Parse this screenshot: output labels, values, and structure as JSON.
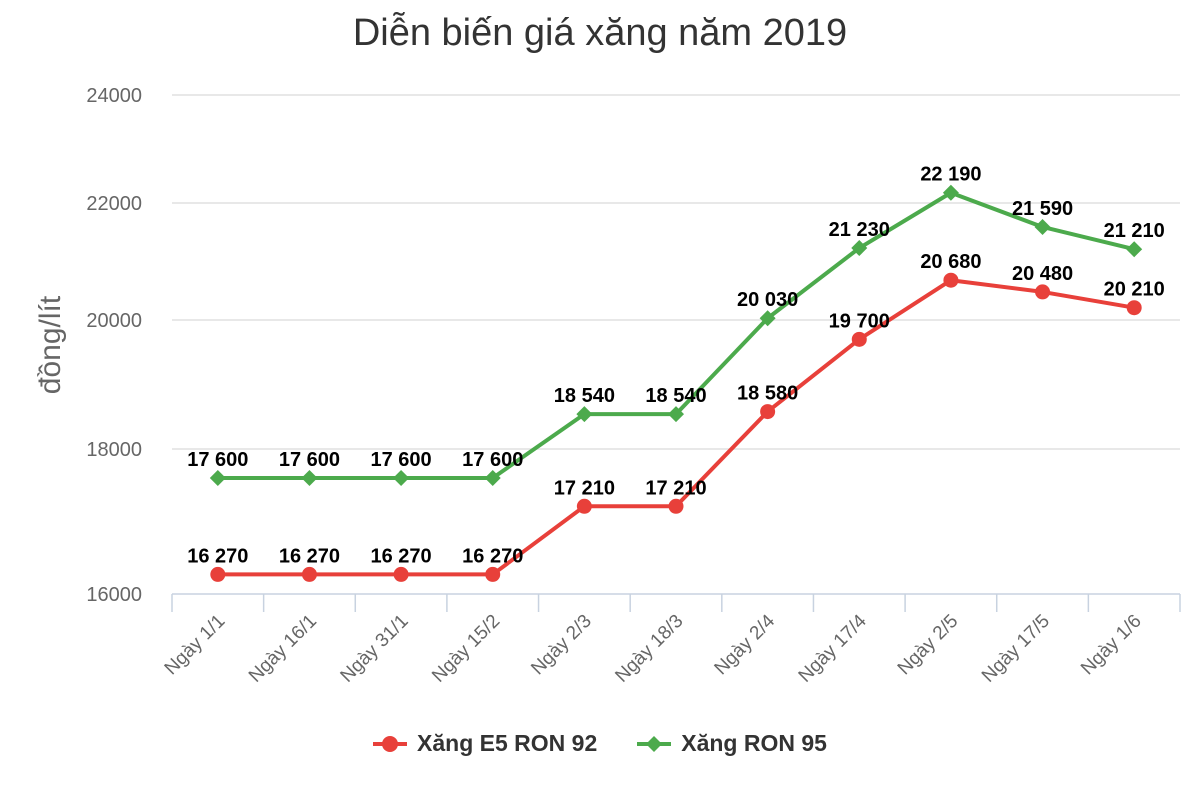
{
  "chart_data": {
    "type": "line",
    "title": "Diễn biến giá xăng năm 2019",
    "xlabel": "",
    "ylabel": "đồng/lít",
    "categories": [
      "Ngày 1/1",
      "Ngày 16/1",
      "Ngày 31/1",
      "Ngày 15/2",
      "Ngày 2/3",
      "Ngày 18/3",
      "Ngày 2/4",
      "Ngày 17/4",
      "Ngày 2/5",
      "Ngày 17/5",
      "Ngày 1/6"
    ],
    "y_ticks": [
      "24000",
      "22000",
      "20000",
      "18000",
      "16000"
    ],
    "ylim": [
      16000,
      24000
    ],
    "grid": true,
    "legend_position": "bottom",
    "series": [
      {
        "name": "Xăng E5 RON 92",
        "color": "#e8403a",
        "marker": "circle",
        "values": [
          16270,
          16270,
          16270,
          16270,
          17210,
          17210,
          18580,
          19700,
          20680,
          20480,
          20210
        ],
        "labels": [
          "16 270",
          "16 270",
          "16 270",
          "16 270",
          "17 210",
          "17 210",
          "18 580",
          "19 700",
          "20 680",
          "20 480",
          "20 210"
        ]
      },
      {
        "name": "Xăng RON 95",
        "color": "#4caa4c",
        "marker": "diamond",
        "values": [
          17600,
          17600,
          17600,
          17600,
          18540,
          18540,
          20030,
          21230,
          22190,
          21590,
          21210
        ],
        "labels": [
          "17 600",
          "17 600",
          "17 600",
          "17 600",
          "18 540",
          "18 540",
          "20 030",
          "21 230",
          "22 190",
          "21 590",
          "21 210"
        ]
      }
    ]
  }
}
